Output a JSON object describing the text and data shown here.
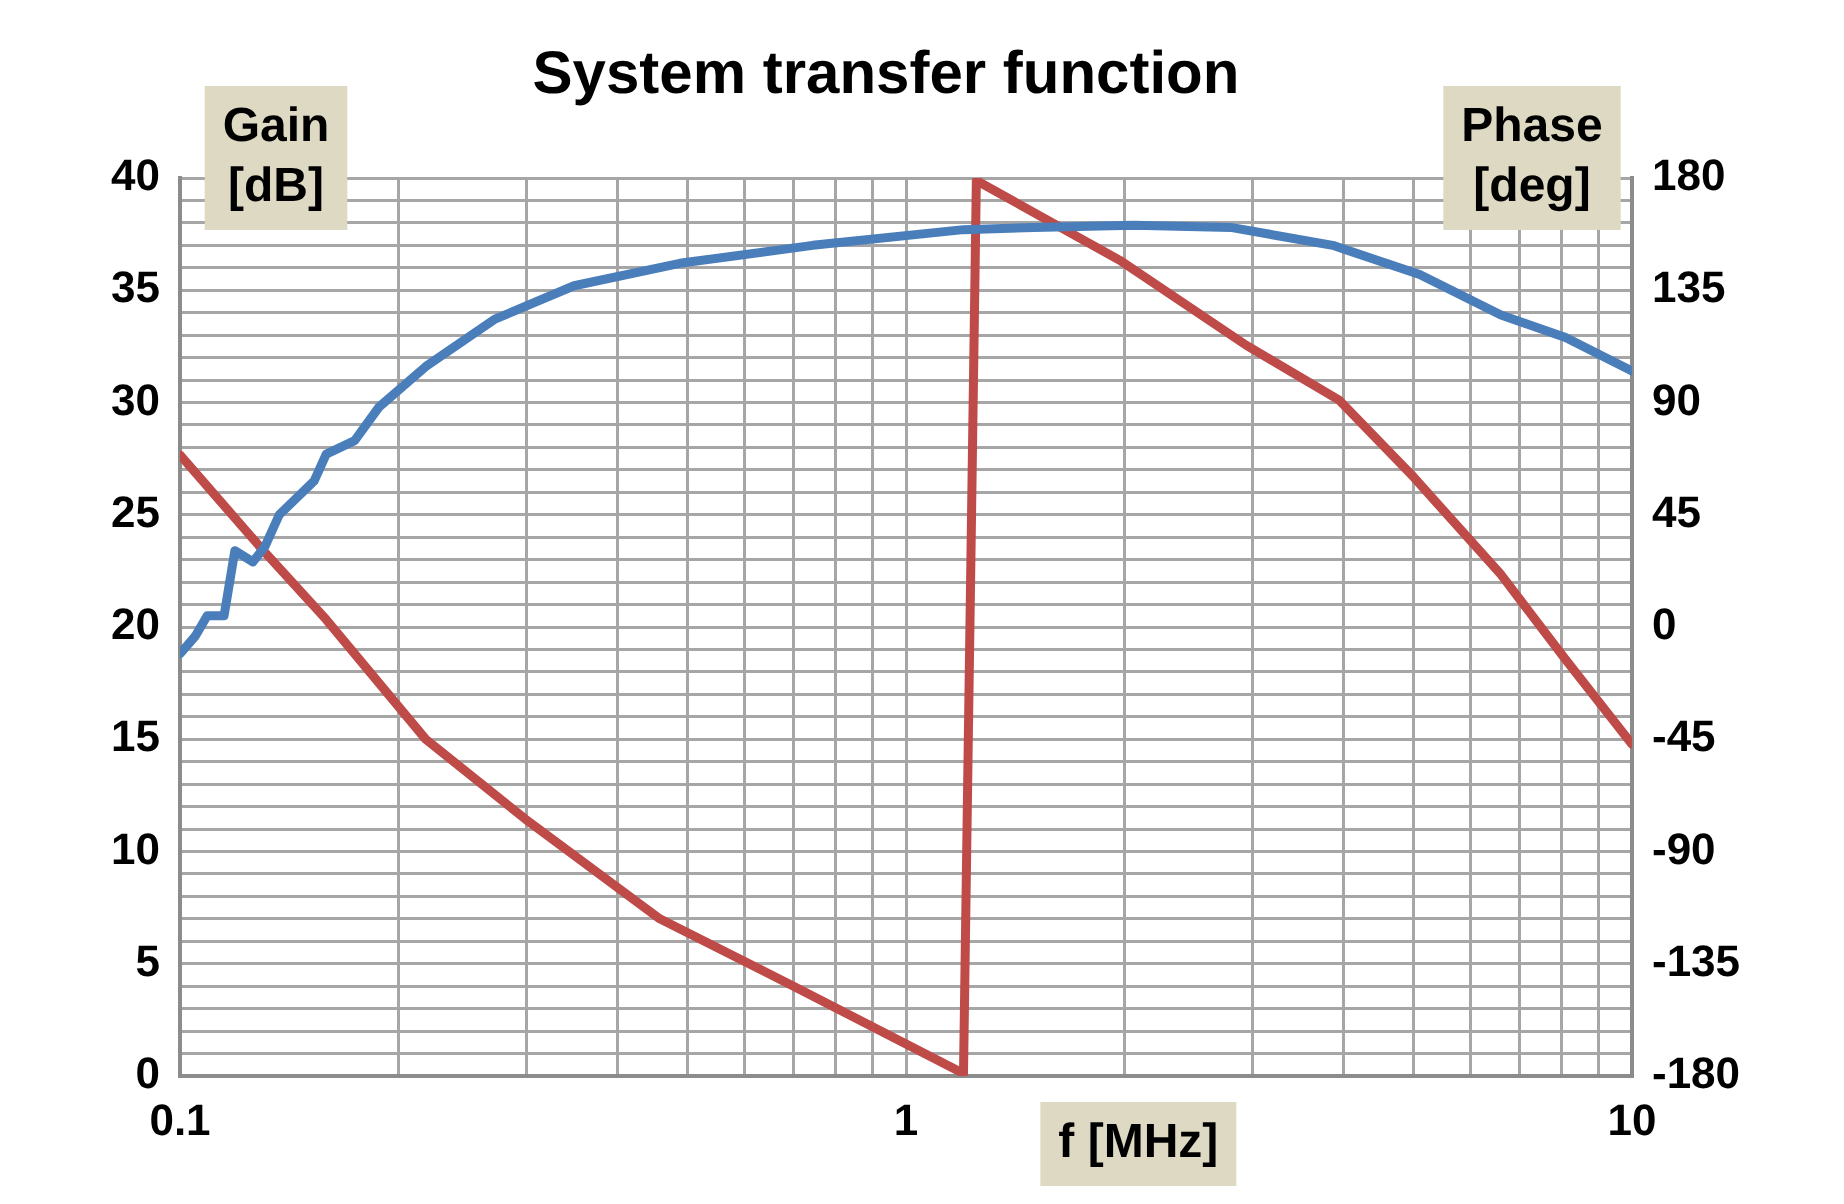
{
  "chart_data": {
    "type": "line",
    "title": "System transfer function",
    "xlabel": "f [MHz]",
    "ylabel": "Gain [dB]",
    "y2label": "Phase [deg]",
    "log": "x",
    "grid": true,
    "legend": false,
    "marker": "none",
    "line_style": "solid",
    "xlim": [
      0.1,
      10
    ],
    "xticks": [
      0.1,
      {
        "value": 0.2,
        "label": null
      },
      {
        "value": 0.3,
        "label": null
      },
      {
        "value": 0.4,
        "label": null
      },
      {
        "value": 0.5,
        "label": null
      },
      {
        "value": 0.6,
        "label": null
      },
      {
        "value": 0.7,
        "label": null
      },
      {
        "value": 0.8,
        "label": null
      },
      {
        "value": 0.9,
        "label": null
      },
      1,
      {
        "value": 2,
        "label": null
      },
      {
        "value": 3,
        "label": null
      },
      {
        "value": 4,
        "label": null
      },
      {
        "value": 5,
        "label": null
      },
      {
        "value": 6,
        "label": null
      },
      {
        "value": 7,
        "label": null
      },
      {
        "value": 8,
        "label": null
      },
      {
        "value": 9,
        "label": null
      },
      10
    ],
    "ylim": [
      0,
      40
    ],
    "yticks": [
      0,
      {
        "value": 1,
        "label": null
      },
      {
        "value": 2,
        "label": null
      },
      {
        "value": 3,
        "label": null
      },
      {
        "value": 4,
        "label": null
      },
      5,
      {
        "value": 6,
        "label": null
      },
      {
        "value": 7,
        "label": null
      },
      {
        "value": 8,
        "label": null
      },
      {
        "value": 9,
        "label": null
      },
      10,
      {
        "value": 11,
        "label": null
      },
      {
        "value": 12,
        "label": null
      },
      {
        "value": 13,
        "label": null
      },
      {
        "value": 14,
        "label": null
      },
      15,
      {
        "value": 16,
        "label": null
      },
      {
        "value": 17,
        "label": null
      },
      {
        "value": 18,
        "label": null
      },
      {
        "value": 19,
        "label": null
      },
      20,
      {
        "value": 21,
        "label": null
      },
      {
        "value": 22,
        "label": null
      },
      {
        "value": 23,
        "label": null
      },
      {
        "value": 24,
        "label": null
      },
      25,
      {
        "value": 26,
        "label": null
      },
      {
        "value": 27,
        "label": null
      },
      {
        "value": 28,
        "label": null
      },
      {
        "value": 29,
        "label": null
      },
      30,
      {
        "value": 31,
        "label": null
      },
      {
        "value": 32,
        "label": null
      },
      {
        "value": 33,
        "label": null
      },
      {
        "value": 34,
        "label": null
      },
      35,
      {
        "value": 36,
        "label": null
      },
      {
        "value": 37,
        "label": null
      },
      {
        "value": 38,
        "label": null
      },
      {
        "value": 39,
        "label": null
      },
      40
    ],
    "y2lim": [
      -180,
      180
    ],
    "y2ticks": [
      -180,
      -135,
      -90,
      -45,
      0,
      45,
      90,
      135,
      180
    ],
    "series": [
      {
        "color": "#4a7ebb",
        "x": [
          0.1,
          0.105,
          0.109,
          0.115,
          0.119,
          0.126,
          0.131,
          0.137,
          0.153,
          0.159,
          0.174,
          0.188,
          0.218,
          0.271,
          0.349,
          0.488,
          0.744,
          1.2,
          1.5,
          2.06,
          2.8,
          3.87,
          5.1,
          6.6,
          8.1,
          10
        ],
        "values": [
          18.8,
          19.6,
          20.5,
          20.5,
          23.4,
          22.9,
          23.6,
          25,
          26.5,
          27.7,
          28.3,
          29.8,
          31.6,
          33.7,
          35.2,
          36.2,
          37,
          37.7,
          37.8,
          37.9,
          37.8,
          37,
          35.7,
          33.9,
          32.9,
          31.4
        ]
      },
      {
        "color": "#be4b48",
        "axis": "y2",
        "x": [
          0.1,
          0.129,
          0.159,
          0.218,
          0.299,
          0.458,
          0.7,
          1.2,
          1.25,
          1.97,
          2.94,
          3.95,
          4.97,
          6.6,
          8.1,
          10
        ],
        "values": [
          69,
          32,
          3,
          -45,
          -77,
          -117,
          -144,
          -179,
          179,
          147,
          113,
          91,
          61,
          21,
          -13,
          -47
        ]
      }
    ]
  }
}
